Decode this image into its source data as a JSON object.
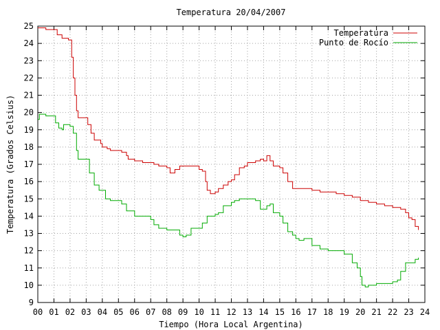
{
  "chart_data": {
    "type": "line",
    "title": "Temperatura 20/04/2007",
    "xlabel": "Tiempo (Hora Local Argentina)",
    "ylabel": "Temperatura (Grados Celsius)",
    "xlim": [
      0,
      24
    ],
    "ylim": [
      9,
      25
    ],
    "x_ticks": [
      "00",
      "01",
      "02",
      "03",
      "04",
      "05",
      "06",
      "07",
      "08",
      "09",
      "10",
      "11",
      "12",
      "13",
      "14",
      "15",
      "16",
      "17",
      "18",
      "19",
      "20",
      "21",
      "22",
      "23",
      "24"
    ],
    "y_ticks": [
      "9",
      "10",
      "11",
      "12",
      "13",
      "14",
      "15",
      "16",
      "17",
      "18",
      "19",
      "20",
      "21",
      "22",
      "23",
      "24",
      "25"
    ],
    "grid": true,
    "legend_position": "top-right",
    "series": [
      {
        "name": "Temperatura",
        "color": "#cc0000",
        "x": [
          0,
          0.5,
          1.0,
          1.2,
          1.5,
          1.9,
          2.1,
          2.2,
          2.3,
          2.4,
          2.5,
          2.6,
          3.0,
          3.1,
          3.3,
          3.5,
          3.9,
          4.0,
          4.3,
          4.5,
          5.0,
          5.2,
          5.5,
          5.6,
          6.0,
          6.5,
          7.0,
          7.2,
          7.5,
          7.8,
          8.0,
          8.2,
          8.5,
          8.8,
          9.0,
          9.5,
          10.0,
          10.2,
          10.4,
          10.5,
          10.7,
          11.0,
          11.2,
          11.5,
          11.8,
          12.0,
          12.2,
          12.5,
          12.8,
          13.0,
          13.5,
          13.8,
          14.0,
          14.2,
          14.4,
          14.6,
          15.0,
          15.2,
          15.5,
          15.8,
          16.0,
          16.5,
          17.0,
          17.5,
          18.0,
          18.5,
          19.0,
          19.5,
          20.0,
          20.5,
          21.0,
          21.5,
          22.0,
          22.5,
          22.8,
          23.0,
          23.2,
          23.4,
          23.6
        ],
        "y": [
          24.9,
          24.8,
          24.8,
          24.5,
          24.3,
          24.2,
          23.2,
          22.0,
          21.0,
          20.1,
          19.7,
          19.7,
          19.7,
          19.3,
          18.8,
          18.4,
          18.2,
          18.0,
          17.9,
          17.8,
          17.8,
          17.7,
          17.5,
          17.3,
          17.2,
          17.1,
          17.1,
          17.0,
          16.9,
          16.9,
          16.8,
          16.5,
          16.7,
          16.9,
          16.9,
          16.9,
          16.7,
          16.6,
          16.0,
          15.5,
          15.3,
          15.4,
          15.6,
          15.8,
          16.0,
          16.1,
          16.4,
          16.8,
          16.9,
          17.1,
          17.2,
          17.3,
          17.2,
          17.5,
          17.2,
          16.9,
          16.8,
          16.5,
          16.0,
          15.6,
          15.6,
          15.6,
          15.5,
          15.4,
          15.4,
          15.3,
          15.2,
          15.1,
          14.9,
          14.8,
          14.7,
          14.6,
          14.5,
          14.4,
          14.2,
          13.9,
          13.8,
          13.4,
          13.2
        ]
      },
      {
        "name": "Punto de Rocío",
        "color": "#00aa00",
        "x": [
          0,
          0.1,
          0.5,
          1.0,
          1.1,
          1.3,
          1.5,
          1.6,
          2.0,
          2.2,
          2.4,
          2.5,
          3.0,
          3.2,
          3.5,
          3.8,
          4.0,
          4.2,
          4.5,
          5.0,
          5.2,
          5.5,
          6.0,
          6.5,
          7.0,
          7.2,
          7.5,
          7.8,
          8.0,
          8.5,
          8.8,
          9.0,
          9.2,
          9.5,
          10.0,
          10.2,
          10.5,
          11.0,
          11.2,
          11.5,
          12.0,
          12.2,
          12.5,
          13.0,
          13.5,
          13.8,
          14.0,
          14.2,
          14.4,
          14.6,
          15.0,
          15.2,
          15.5,
          15.8,
          16.0,
          16.2,
          16.5,
          17.0,
          17.5,
          18.0,
          18.5,
          19.0,
          19.5,
          19.8,
          20.0,
          20.1,
          20.3,
          20.5,
          21.0,
          21.5,
          22.0,
          22.3,
          22.5,
          22.8,
          23.0,
          23.2,
          23.4,
          23.6
        ],
        "y": [
          19.6,
          19.9,
          19.8,
          19.8,
          19.4,
          19.1,
          19.0,
          19.3,
          19.2,
          18.8,
          17.8,
          17.3,
          17.3,
          16.5,
          15.8,
          15.5,
          15.5,
          15.0,
          14.9,
          14.9,
          14.7,
          14.3,
          14.0,
          14.0,
          13.8,
          13.5,
          13.3,
          13.3,
          13.2,
          13.2,
          12.9,
          12.8,
          12.9,
          13.3,
          13.3,
          13.6,
          14.0,
          14.1,
          14.2,
          14.6,
          14.8,
          14.9,
          15.0,
          15.0,
          14.9,
          14.4,
          14.4,
          14.6,
          14.7,
          14.2,
          14.0,
          13.6,
          13.1,
          12.9,
          12.7,
          12.6,
          12.7,
          12.3,
          12.1,
          12.0,
          12.0,
          11.8,
          11.3,
          11.0,
          10.5,
          10.0,
          9.9,
          10.0,
          10.1,
          10.1,
          10.2,
          10.3,
          10.8,
          11.3,
          11.3,
          11.3,
          11.5,
          11.6
        ]
      }
    ]
  }
}
